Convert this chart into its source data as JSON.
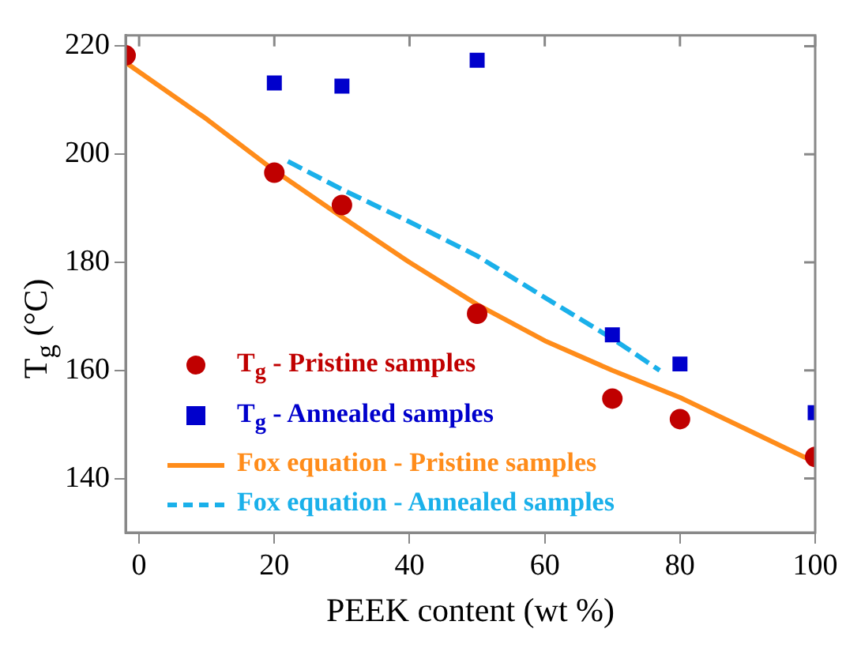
{
  "chart_data": {
    "type": "scatter",
    "xlabel": "PEEK content (wt %)",
    "ylabel": "T$_{g}$ (°C)",
    "xlim": [
      -2,
      100
    ],
    "xticks": [
      0,
      20,
      40,
      60,
      80,
      100
    ],
    "ylim": [
      130,
      222
    ],
    "yticks": [
      140,
      160,
      180,
      200,
      220
    ],
    "grid": false,
    "legend": "bottom left",
    "series": [
      {
        "name": "T$_{g}$ - Pristine samples",
        "marker": "circle",
        "color": "#c00000",
        "x": [
          -2,
          20,
          30,
          50,
          70,
          80,
          100
        ],
        "values": [
          218.3,
          196.6,
          190.6,
          170.5,
          154.8,
          151.0,
          144.0
        ]
      },
      {
        "name": "T$_{g}$ - Annealed samples",
        "marker": "square",
        "color": "#0000cc",
        "x": [
          20,
          30,
          50,
          70,
          80,
          100
        ],
        "values": [
          213.2,
          212.6,
          217.4,
          166.6,
          161.2,
          152.2
        ]
      },
      {
        "name": "Fox equation - Pristine samples",
        "type": "line",
        "marker": "none",
        "line_style": "solid",
        "color": "#ff8c1a",
        "x": [
          -2,
          10,
          20,
          30,
          40,
          50,
          60,
          70,
          80,
          90,
          100
        ],
        "values": [
          217,
          206.5,
          197,
          188.4,
          180,
          172.2,
          165.5,
          160,
          155,
          149,
          143
        ]
      },
      {
        "name": "Fox equation - Annealed samples",
        "type": "line",
        "marker": "none",
        "line_style": "dashed",
        "color": "#1ab0ea",
        "x": [
          22,
          30,
          40,
          50,
          60,
          70,
          77
        ],
        "values": [
          198.7,
          193.5,
          187.5,
          181.2,
          173.5,
          165.9,
          160
        ]
      }
    ]
  }
}
